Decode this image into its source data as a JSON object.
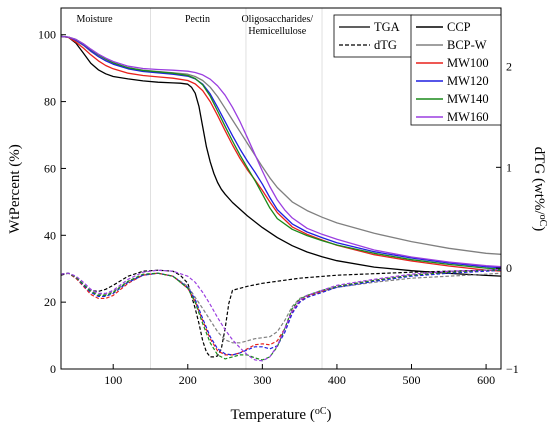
{
  "chart_data": {
    "type": "line",
    "xlabel": "Temperature (",
    "xlabel_unit": "oC",
    "xlabel_close": ")",
    "ylabel": "WtPercent (%)",
    "y2label": "dTG (wt%/",
    "y2label_unit": "oC",
    "y2label_close": ")",
    "xlim": [
      30,
      620
    ],
    "ylim": [
      0,
      108
    ],
    "y2lim": [
      -1,
      2.58
    ],
    "xticks": [
      100,
      200,
      300,
      400,
      500,
      600
    ],
    "yticks": [
      0,
      20,
      40,
      60,
      80,
      100
    ],
    "y2ticks": [
      -1,
      0,
      1,
      2
    ],
    "regions": [
      {
        "label": "Moisture",
        "x": 75
      },
      {
        "label": "Pectin",
        "x": 213
      },
      {
        "label": "Oligosaccharides/",
        "x": 320
      },
      {
        "label": "Hemicellulose",
        "x": 320
      }
    ],
    "region_dividers_x": [
      150,
      278,
      380
    ],
    "style_legend": [
      {
        "label": "TGA",
        "dash": "solid"
      },
      {
        "label": "dTG",
        "dash": "dashed"
      }
    ],
    "series": [
      {
        "name": "CCP",
        "color": "#000000",
        "tga": {
          "x": [
            30,
            40,
            50,
            60,
            70,
            80,
            90,
            100,
            120,
            140,
            160,
            180,
            190,
            200,
            205,
            210,
            215,
            220,
            225,
            230,
            235,
            240,
            245,
            250,
            260,
            280,
            300,
            320,
            340,
            360,
            380,
            400,
            450,
            500,
            550,
            600,
            620
          ],
          "y": [
            99.5,
            99.2,
            97.5,
            94.5,
            91.5,
            89.5,
            88.3,
            87.5,
            86.8,
            86.2,
            85.8,
            85.6,
            85.5,
            85.2,
            84.3,
            82.5,
            78.5,
            72.5,
            66.5,
            62,
            58.5,
            55.8,
            53.8,
            52.3,
            49.8,
            45.8,
            42.3,
            39.3,
            36.9,
            35,
            33.6,
            32.4,
            30.5,
            29.4,
            28.6,
            28,
            27.8
          ]
        },
        "dtg": {
          "x": [
            30,
            40,
            50,
            60,
            70,
            80,
            90,
            100,
            120,
            140,
            160,
            180,
            190,
            200,
            210,
            215,
            220,
            225,
            230,
            235,
            240,
            245,
            250,
            255,
            260,
            270,
            280,
            300,
            350,
            400,
            500,
            600,
            620
          ],
          "y": [
            -0.07,
            -0.05,
            -0.1,
            -0.17,
            -0.22,
            -0.23,
            -0.21,
            -0.17,
            -0.08,
            -0.03,
            -0.02,
            -0.03,
            -0.07,
            -0.15,
            -0.4,
            -0.55,
            -0.72,
            -0.83,
            -0.88,
            -0.88,
            -0.87,
            -0.8,
            -0.6,
            -0.35,
            -0.22,
            -0.2,
            -0.18,
            -0.15,
            -0.1,
            -0.07,
            -0.04,
            -0.02,
            -0.01
          ]
        }
      },
      {
        "name": "BCP-W",
        "color": "#808080",
        "tga": {
          "x": [
            30,
            40,
            50,
            60,
            70,
            80,
            90,
            100,
            120,
            140,
            160,
            180,
            200,
            210,
            220,
            230,
            240,
            250,
            260,
            270,
            280,
            290,
            300,
            310,
            320,
            340,
            360,
            380,
            400,
            450,
            500,
            550,
            600,
            620
          ],
          "y": [
            99.5,
            99.2,
            98.2,
            96.8,
            95,
            93.5,
            92.3,
            91.4,
            90.1,
            89.4,
            89,
            88.6,
            88.2,
            87.5,
            86.3,
            84.3,
            81.5,
            78,
            74.5,
            71,
            67.5,
            64,
            60.5,
            57.2,
            54.3,
            50,
            47.4,
            45.4,
            43.7,
            40.6,
            38.1,
            36.1,
            34.6,
            34.3
          ]
        },
        "dtg": {
          "x": [
            30,
            40,
            50,
            60,
            70,
            80,
            90,
            100,
            120,
            140,
            160,
            180,
            200,
            220,
            240,
            250,
            260,
            270,
            280,
            290,
            300,
            310,
            320,
            330,
            340,
            350,
            360,
            380,
            400,
            450,
            500,
            550,
            600,
            620
          ],
          "y": [
            -0.06,
            -0.05,
            -0.09,
            -0.16,
            -0.22,
            -0.26,
            -0.26,
            -0.23,
            -0.13,
            -0.07,
            -0.05,
            -0.08,
            -0.18,
            -0.4,
            -0.63,
            -0.71,
            -0.74,
            -0.74,
            -0.72,
            -0.7,
            -0.69,
            -0.68,
            -0.63,
            -0.52,
            -0.38,
            -0.3,
            -0.27,
            -0.23,
            -0.19,
            -0.14,
            -0.1,
            -0.08,
            -0.06,
            -0.05
          ]
        }
      },
      {
        "name": "MW100",
        "color": "#e8211c",
        "tga": {
          "x": [
            30,
            40,
            50,
            60,
            70,
            80,
            90,
            100,
            120,
            140,
            160,
            180,
            200,
            210,
            220,
            230,
            240,
            250,
            260,
            270,
            280,
            290,
            300,
            310,
            320,
            340,
            360,
            380,
            400,
            450,
            500,
            550,
            600,
            620
          ],
          "y": [
            99.5,
            99.2,
            97.8,
            96,
            94,
            92.2,
            90.8,
            89.8,
            88.5,
            87.8,
            87.4,
            87,
            86.3,
            85.3,
            83.3,
            80,
            75.8,
            71.3,
            67,
            63,
            59.6,
            56.6,
            53.4,
            50,
            46.8,
            42.5,
            40.3,
            38.6,
            37,
            34.2,
            32.3,
            30.8,
            29.6,
            29.3
          ]
        },
        "dtg": {
          "x": [
            30,
            40,
            50,
            60,
            70,
            80,
            90,
            100,
            120,
            140,
            160,
            180,
            200,
            210,
            220,
            230,
            240,
            250,
            260,
            270,
            280,
            290,
            300,
            310,
            320,
            330,
            340,
            350,
            360,
            380,
            400,
            450,
            500,
            550,
            600,
            620
          ],
          "y": [
            -0.06,
            -0.05,
            -0.1,
            -0.18,
            -0.26,
            -0.3,
            -0.3,
            -0.27,
            -0.15,
            -0.07,
            -0.05,
            -0.08,
            -0.2,
            -0.33,
            -0.52,
            -0.7,
            -0.82,
            -0.86,
            -0.86,
            -0.84,
            -0.8,
            -0.76,
            -0.75,
            -0.76,
            -0.72,
            -0.6,
            -0.43,
            -0.33,
            -0.28,
            -0.23,
            -0.18,
            -0.12,
            -0.07,
            -0.04,
            -0.02,
            -0.02
          ]
        }
      },
      {
        "name": "MW120",
        "color": "#1f1fe0",
        "tga": {
          "x": [
            30,
            40,
            50,
            60,
            70,
            80,
            90,
            100,
            120,
            140,
            160,
            180,
            200,
            210,
            220,
            230,
            240,
            250,
            260,
            270,
            280,
            290,
            300,
            310,
            320,
            340,
            360,
            380,
            400,
            450,
            500,
            550,
            600,
            620
          ],
          "y": [
            99.5,
            99.3,
            98.4,
            97,
            95.2,
            93.5,
            92.2,
            91.2,
            89.8,
            89,
            88.6,
            88.2,
            87.6,
            86.8,
            85.2,
            82.3,
            78.3,
            74,
            69.8,
            65.8,
            62.2,
            58.9,
            55.3,
            51.3,
            47.7,
            43.4,
            41,
            39.3,
            37.8,
            35.1,
            33.2,
            31.7,
            30.6,
            30.3
          ]
        },
        "dtg": {
          "x": [
            30,
            40,
            50,
            60,
            70,
            80,
            90,
            100,
            120,
            140,
            160,
            180,
            200,
            210,
            220,
            230,
            240,
            250,
            260,
            270,
            280,
            290,
            300,
            310,
            320,
            330,
            340,
            350,
            360,
            380,
            400,
            450,
            500,
            550,
            600,
            620
          ],
          "y": [
            -0.06,
            -0.05,
            -0.09,
            -0.17,
            -0.24,
            -0.28,
            -0.28,
            -0.25,
            -0.14,
            -0.07,
            -0.05,
            -0.08,
            -0.19,
            -0.31,
            -0.5,
            -0.68,
            -0.8,
            -0.85,
            -0.86,
            -0.84,
            -0.81,
            -0.78,
            -0.78,
            -0.8,
            -0.77,
            -0.64,
            -0.45,
            -0.34,
            -0.29,
            -0.24,
            -0.19,
            -0.13,
            -0.08,
            -0.05,
            -0.03,
            -0.02
          ]
        }
      },
      {
        "name": "MW140",
        "color": "#1a8a1a",
        "tga": {
          "x": [
            30,
            40,
            50,
            60,
            70,
            80,
            90,
            100,
            120,
            140,
            160,
            180,
            200,
            210,
            220,
            230,
            240,
            250,
            260,
            270,
            280,
            290,
            300,
            310,
            320,
            340,
            360,
            380,
            400,
            450,
            500,
            550,
            600,
            620
          ],
          "y": [
            99.5,
            99.3,
            98.6,
            97.3,
            95.6,
            94,
            92.7,
            91.6,
            90.1,
            89.3,
            88.9,
            88.5,
            87.8,
            86.9,
            85,
            81.6,
            77.2,
            72.6,
            68.2,
            64,
            60.2,
            56.4,
            52.3,
            48.2,
            45,
            41.8,
            39.9,
            38.4,
            37.1,
            34.6,
            32.7,
            31.3,
            30.2,
            29.9
          ]
        },
        "dtg": {
          "x": [
            30,
            40,
            50,
            60,
            70,
            80,
            90,
            100,
            120,
            140,
            160,
            180,
            200,
            210,
            220,
            230,
            240,
            250,
            260,
            270,
            280,
            290,
            300,
            310,
            320,
            330,
            340,
            350,
            360,
            380,
            400,
            450,
            500,
            550,
            600,
            620
          ],
          "y": [
            -0.06,
            -0.05,
            -0.09,
            -0.16,
            -0.23,
            -0.27,
            -0.27,
            -0.24,
            -0.13,
            -0.06,
            -0.05,
            -0.08,
            -0.2,
            -0.34,
            -0.55,
            -0.74,
            -0.86,
            -0.9,
            -0.88,
            -0.86,
            -0.86,
            -0.89,
            -0.91,
            -0.88,
            -0.78,
            -0.6,
            -0.4,
            -0.31,
            -0.27,
            -0.22,
            -0.18,
            -0.12,
            -0.07,
            -0.04,
            -0.02,
            -0.02
          ]
        }
      },
      {
        "name": "MW160",
        "color": "#9b3fe0",
        "tga": {
          "x": [
            30,
            40,
            50,
            60,
            70,
            80,
            90,
            100,
            120,
            140,
            160,
            180,
            200,
            210,
            220,
            230,
            240,
            250,
            260,
            270,
            280,
            290,
            300,
            310,
            320,
            330,
            340,
            360,
            380,
            400,
            450,
            500,
            550,
            600,
            620
          ],
          "y": [
            99.5,
            99.3,
            98.6,
            97.3,
            95.7,
            94.2,
            93,
            92,
            90.6,
            89.9,
            89.6,
            89.4,
            89.1,
            88.7,
            88,
            86.7,
            84.7,
            81.9,
            78.3,
            74,
            69.2,
            64.2,
            59.2,
            54.6,
            50.6,
            47.6,
            45.2,
            42.1,
            40.3,
            38.8,
            35.6,
            33.5,
            32,
            30.9,
            30.6
          ]
        },
        "dtg": {
          "x": [
            30,
            40,
            50,
            60,
            70,
            80,
            90,
            100,
            120,
            140,
            160,
            180,
            200,
            210,
            220,
            230,
            240,
            250,
            260,
            270,
            280,
            290,
            300,
            310,
            320,
            330,
            340,
            350,
            360,
            380,
            400,
            450,
            500,
            550,
            600,
            620
          ],
          "y": [
            -0.06,
            -0.05,
            -0.08,
            -0.14,
            -0.21,
            -0.25,
            -0.25,
            -0.22,
            -0.11,
            -0.04,
            -0.02,
            -0.03,
            -0.08,
            -0.14,
            -0.24,
            -0.36,
            -0.49,
            -0.61,
            -0.71,
            -0.79,
            -0.86,
            -0.91,
            -0.92,
            -0.88,
            -0.77,
            -0.6,
            -0.42,
            -0.32,
            -0.27,
            -0.22,
            -0.17,
            -0.11,
            -0.06,
            -0.03,
            -0.02,
            -0.01
          ]
        }
      }
    ]
  }
}
